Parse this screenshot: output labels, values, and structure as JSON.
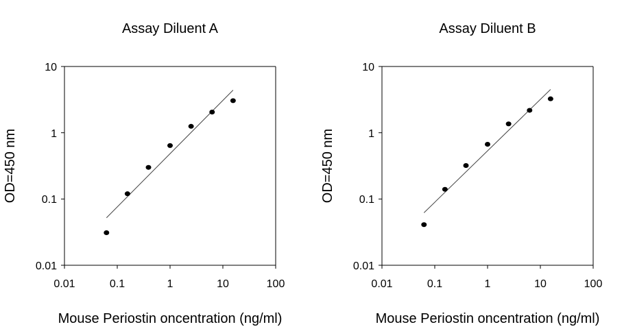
{
  "chart_data": [
    {
      "type": "scatter",
      "title": "Assay Diluent A",
      "xlabel": "Mouse Periostin oncentration (ng/ml)",
      "ylabel": "OD=450 nm",
      "xscale": "log",
      "yscale": "log",
      "xlim": [
        0.01,
        100
      ],
      "ylim": [
        0.01,
        10
      ],
      "xticks": [
        "0.01",
        "0.1",
        "1",
        "10",
        "100"
      ],
      "yticks": [
        "0.01",
        "0.1",
        "1",
        "10"
      ],
      "grid": false,
      "legend": "none",
      "series": [
        {
          "x": [
            0.0625,
            0.156,
            0.39,
            1,
            2.5,
            6.25,
            15.6
          ],
          "y": [
            0.031,
            0.12,
            0.3,
            0.64,
            1.25,
            2.05,
            3.05
          ]
        }
      ],
      "trendline": {
        "x": [
          0.0625,
          15.6
        ],
        "y": [
          0.052,
          4.4
        ]
      }
    },
    {
      "type": "scatter",
      "title": "Assay Diluent B",
      "xlabel": "Mouse Periostin oncentration (ng/ml)",
      "ylabel": "OD=450 nm",
      "xscale": "log",
      "yscale": "log",
      "xlim": [
        0.01,
        100
      ],
      "ylim": [
        0.01,
        10
      ],
      "xticks": [
        "0.01",
        "0.1",
        "1",
        "10",
        "100"
      ],
      "yticks": [
        "0.01",
        "0.1",
        "1",
        "10"
      ],
      "grid": false,
      "legend": "none",
      "series": [
        {
          "x": [
            0.0625,
            0.156,
            0.39,
            1,
            2.5,
            6.25,
            15.6
          ],
          "y": [
            0.041,
            0.14,
            0.32,
            0.67,
            1.36,
            2.18,
            3.25
          ]
        }
      ],
      "trendline": {
        "x": [
          0.0625,
          15.6
        ],
        "y": [
          0.062,
          4.5
        ]
      }
    }
  ]
}
